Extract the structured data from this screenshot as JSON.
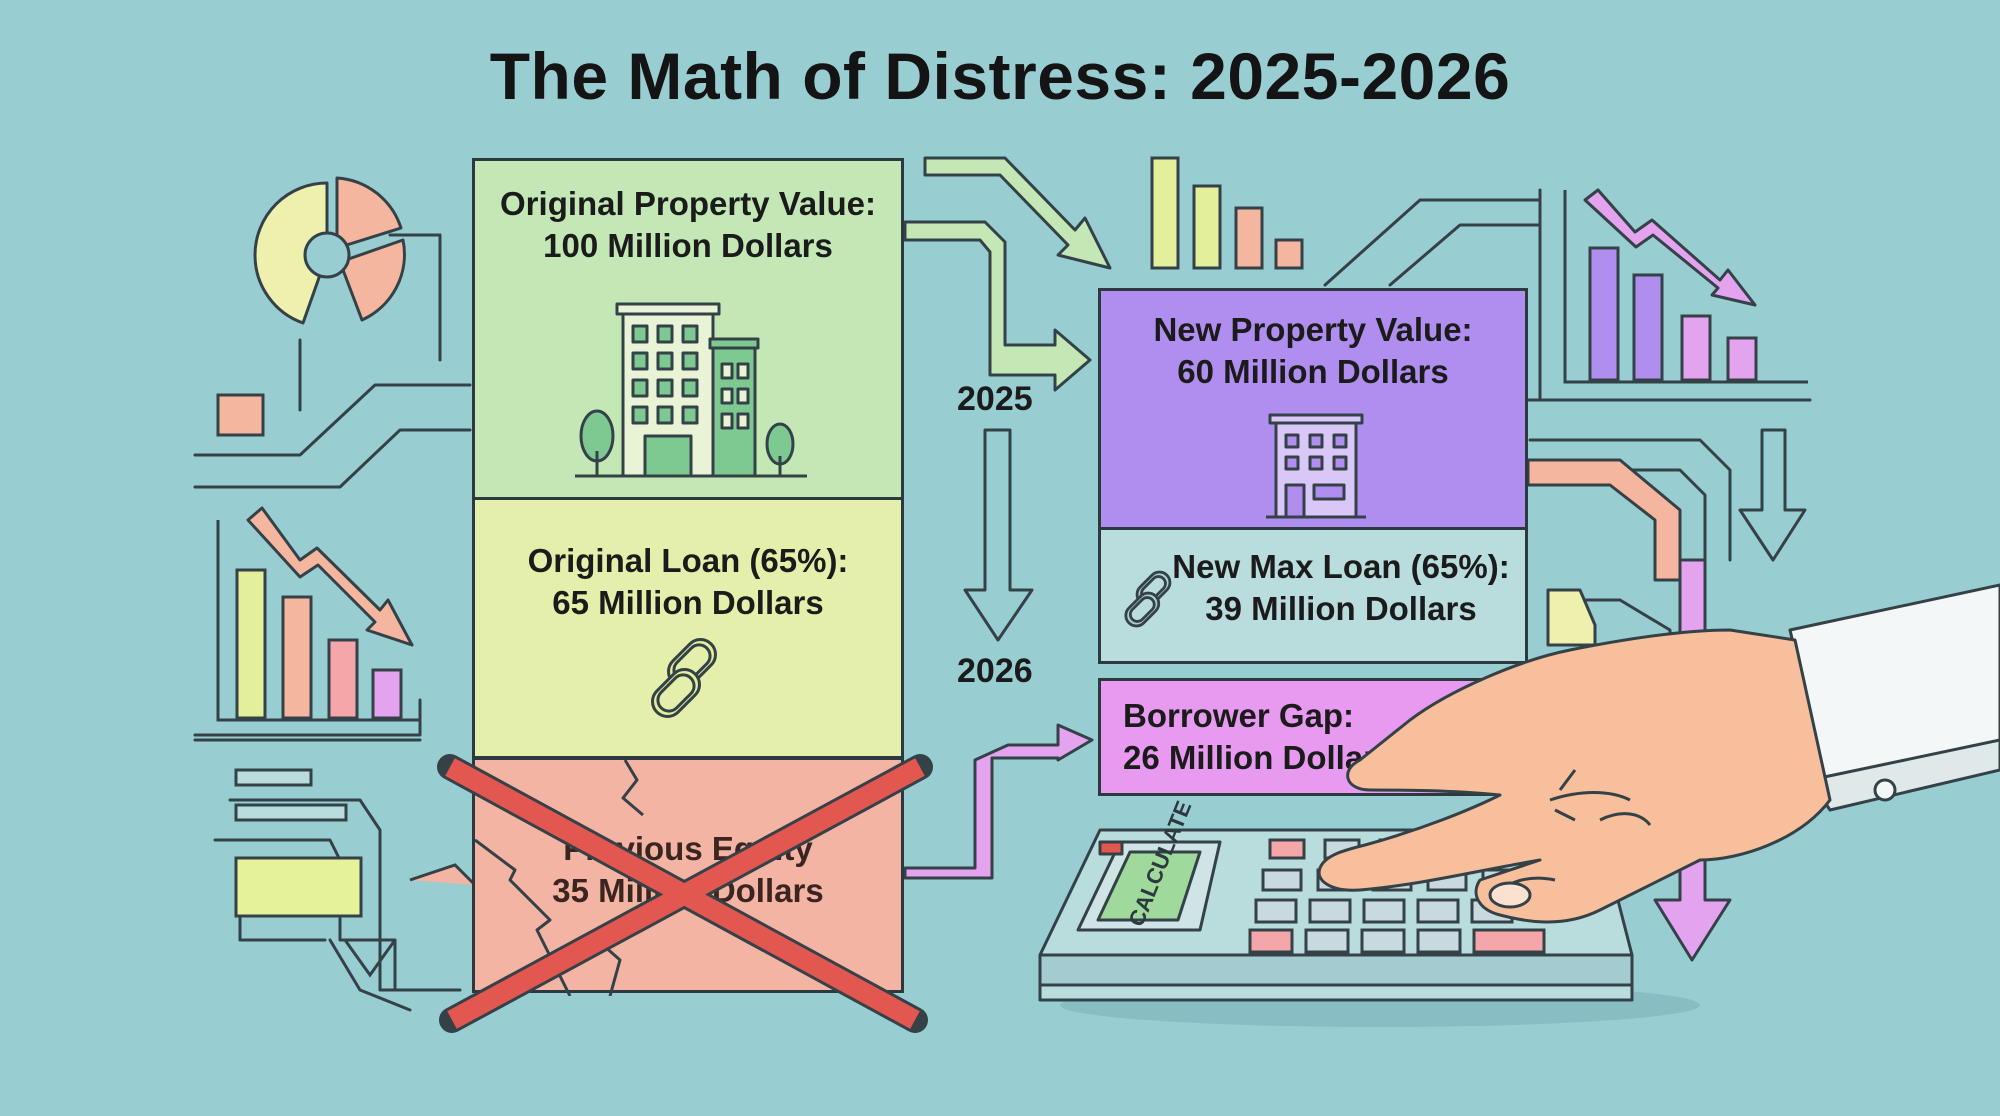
{
  "title": "The Math of Distress: 2025-2026",
  "years": {
    "start": "2025",
    "end": "2026"
  },
  "left_stack": {
    "property": {
      "label": "Original Property Value:",
      "value": "100 Million Dollars",
      "icon": "office-building-icon",
      "color": "#c3e8b6"
    },
    "loan": {
      "label": "Original Loan (65%):",
      "value": "65 Million Dollars",
      "icon": "chain-link-icon",
      "color": "#e3efaa"
    },
    "equity": {
      "label": "Previous Equity",
      "value": "35 Million Dollars",
      "status": "crossed-out",
      "color": "#f3b4a4"
    }
  },
  "right_stack": {
    "property": {
      "label": "New Property Value:",
      "value": "60 Million Dollars",
      "icon": "building-icon",
      "color": "#b08ef0"
    },
    "loan": {
      "label": "New Max Loan (65%):",
      "value": "39 Million Dollars",
      "icon": "chain-link-icon",
      "color": "#b9dcdc"
    },
    "gap": {
      "label": "Borrower Gap:",
      "value": "26 Million Dollars",
      "color": "#e79af0"
    }
  },
  "calculator": {
    "display": "CALCULATE",
    "icon": "calculator-icon"
  },
  "decorations": [
    "pie-chart-icon",
    "bar-chart-icon",
    "trend-down-arrow-icon",
    "hand-pointing-icon",
    "x-mark-icon"
  ]
}
